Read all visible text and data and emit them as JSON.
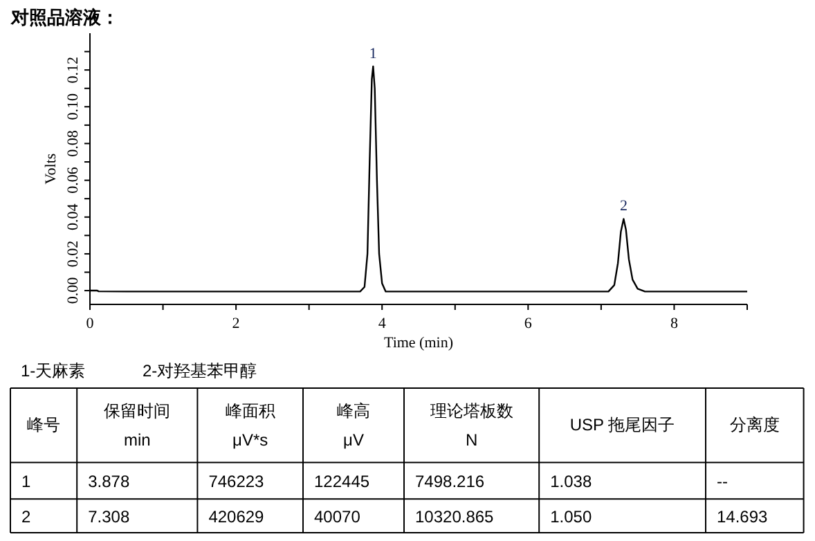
{
  "chart_data": {
    "type": "line",
    "title": "对照品溶液：",
    "xlabel": "Time (min)",
    "ylabel": "Volts",
    "x": [
      0,
      0.1,
      0.12,
      0.5,
      3.7,
      3.76,
      3.8,
      3.83,
      3.86,
      3.878,
      3.9,
      3.93,
      3.96,
      4.0,
      4.05,
      7.1,
      7.18,
      7.23,
      7.27,
      7.308,
      7.34,
      7.38,
      7.43,
      7.5,
      7.6,
      9.0
    ],
    "series": [
      {
        "color": "#000000",
        "values": [
          0.0,
          0.0,
          -0.0004,
          -0.0005,
          -0.0005,
          0.002,
          0.02,
          0.07,
          0.115,
          0.122,
          0.11,
          0.06,
          0.02,
          0.004,
          -0.0005,
          -0.0005,
          0.003,
          0.015,
          0.032,
          0.039,
          0.033,
          0.017,
          0.006,
          0.001,
          -0.0005,
          -0.0005
        ]
      }
    ],
    "xlim": [
      0,
      9
    ],
    "ylim": [
      -0.0075,
      0.14
    ],
    "xticks": [
      0,
      {
        "value": 1,
        "label": null
      },
      2,
      {
        "value": 3,
        "label": null
      },
      4,
      {
        "value": 5,
        "label": null
      },
      6,
      {
        "value": 7,
        "label": null
      },
      8,
      {
        "value": 9,
        "label": null
      }
    ],
    "yticks": [
      {
        "value": 0,
        "label": "0.00"
      },
      {
        "value": 0.01,
        "label": null
      },
      {
        "value": 0.02,
        "label": "0.02"
      },
      {
        "value": 0.03,
        "label": null
      },
      {
        "value": 0.04,
        "label": "0.04"
      },
      {
        "value": 0.05,
        "label": null
      },
      {
        "value": 0.06,
        "label": "0.06"
      },
      {
        "value": 0.07,
        "label": null
      },
      {
        "value": 0.08,
        "label": "0.08"
      },
      {
        "value": 0.09,
        "label": null
      },
      {
        "value": 0.1,
        "label": "0.10"
      },
      {
        "value": 0.11,
        "label": null
      },
      {
        "value": 0.12,
        "label": "0.12"
      },
      {
        "value": 0.13,
        "label": null
      }
    ],
    "grid": false,
    "annotations": [
      {
        "text": "1",
        "x": 3.878,
        "y": 0.122
      },
      {
        "text": "2",
        "x": 7.308,
        "y": 0.039
      },
      "1-天麻素",
      "2-对羟基苯甲醇",
      "峰号",
      "保留时间\nmin",
      "峰面积\nμV*s",
      "峰高\nμV",
      "理论塔板数\nN",
      "USP 拖尾因子",
      "分离度",
      "1",
      "3.878",
      "746223",
      "122445",
      "7498.216",
      "1.038",
      "--",
      "2",
      "7.308",
      "420629",
      "40070",
      "10320.865",
      "1.050",
      "14.693"
    ]
  }
}
